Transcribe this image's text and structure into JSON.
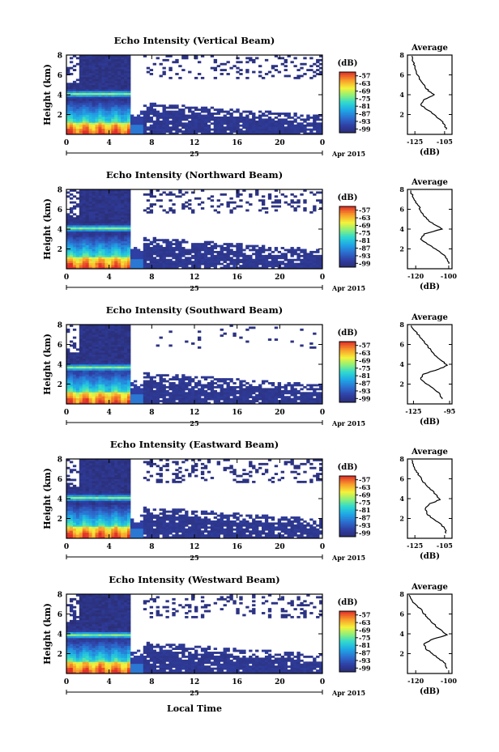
{
  "chart_data": {
    "type": "heatmap",
    "time_ticks": [
      "0",
      "4",
      "8",
      "12",
      "16",
      "20",
      "0"
    ],
    "time_range": [
      0,
      24
    ],
    "height_ticks": [
      "2",
      "4",
      "6",
      "8"
    ],
    "height_range": [
      0,
      8
    ],
    "day_label": "25",
    "month_label": "Apr 2015",
    "xlabel": "Local Time",
    "colorbar": {
      "unit": "(dB)",
      "ticks": [
        "-57",
        "-63",
        "-69",
        "-75",
        "-81",
        "-87",
        "-93",
        "-99"
      ],
      "range": [
        -102,
        -54
      ]
    },
    "panels": [
      {
        "title": "Echo Intensity (Vertical Beam)",
        "ylabel": "Height (km)",
        "avg_title": "Average",
        "avg_xlabel": "(dB)",
        "avg_ticks": [
          "-125",
          "-105"
        ],
        "avg_range": [
          -130,
          -100
        ],
        "avg_profile": [
          [
            -104,
            0.5
          ],
          [
            -105,
            1.0
          ],
          [
            -108,
            1.5
          ],
          [
            -112,
            2.0
          ],
          [
            -117,
            2.5
          ],
          [
            -121,
            3.0
          ],
          [
            -119,
            3.5
          ],
          [
            -112,
            4.0
          ],
          [
            -115,
            4.3
          ],
          [
            -118,
            4.7
          ],
          [
            -120,
            5.2
          ],
          [
            -122,
            5.7
          ],
          [
            -124,
            6.2
          ],
          [
            -125,
            6.8
          ],
          [
            -126,
            7.3
          ],
          [
            -127,
            7.9
          ]
        ]
      },
      {
        "title": "Echo Intensity (Northward Beam)",
        "ylabel": "Height (km)",
        "avg_title": "Average",
        "avg_xlabel": "(dB)",
        "avg_ticks": [
          "-120",
          "-100"
        ],
        "avg_range": [
          -125,
          -98
        ],
        "avg_profile": [
          [
            -100,
            0.5
          ],
          [
            -101,
            1.0
          ],
          [
            -104,
            1.5
          ],
          [
            -108,
            2.0
          ],
          [
            -113,
            2.5
          ],
          [
            -117,
            3.0
          ],
          [
            -115,
            3.5
          ],
          [
            -104,
            4.0
          ],
          [
            -108,
            4.4
          ],
          [
            -112,
            4.8
          ],
          [
            -115,
            5.3
          ],
          [
            -117,
            5.8
          ],
          [
            -118,
            6.3
          ],
          [
            -120,
            6.8
          ],
          [
            -122,
            7.3
          ],
          [
            -123,
            7.9
          ]
        ]
      },
      {
        "title": "Echo Intensity (Southward Beam)",
        "ylabel": "Height (km)",
        "avg_title": "Average",
        "avg_xlabel": "(dB)",
        "avg_ticks": [
          "-125",
          "-95"
        ],
        "avg_range": [
          -130,
          -93
        ],
        "avg_profile": [
          [
            -101,
            0.5
          ],
          [
            -103,
            1.0
          ],
          [
            -108,
            1.5
          ],
          [
            -114,
            2.0
          ],
          [
            -119,
            2.5
          ],
          [
            -117,
            3.0
          ],
          [
            -104,
            3.5
          ],
          [
            -97,
            3.9
          ],
          [
            -101,
            4.3
          ],
          [
            -106,
            4.8
          ],
          [
            -110,
            5.3
          ],
          [
            -113,
            5.8
          ],
          [
            -116,
            6.3
          ],
          [
            -120,
            6.8
          ],
          [
            -123,
            7.3
          ],
          [
            -127,
            7.9
          ]
        ]
      },
      {
        "title": "Echo Intensity (Eastward Beam)",
        "ylabel": "Height (km)",
        "avg_title": "Average",
        "avg_xlabel": "(dB)",
        "avg_ticks": [
          "-125",
          "-105"
        ],
        "avg_range": [
          -130,
          -100
        ],
        "avg_profile": [
          [
            -104,
            0.5
          ],
          [
            -105,
            1.0
          ],
          [
            -108,
            1.5
          ],
          [
            -113,
            2.0
          ],
          [
            -117,
            2.5
          ],
          [
            -118,
            3.0
          ],
          [
            -115,
            3.5
          ],
          [
            -108,
            3.9
          ],
          [
            -110,
            4.3
          ],
          [
            -113,
            4.8
          ],
          [
            -117,
            5.3
          ],
          [
            -120,
            5.8
          ],
          [
            -122,
            6.3
          ],
          [
            -124,
            6.8
          ],
          [
            -126,
            7.3
          ],
          [
            -127,
            7.9
          ]
        ]
      },
      {
        "title": "Echo Intensity (Westward Beam)",
        "ylabel": "Height (km)",
        "avg_title": "Average",
        "avg_xlabel": "(dB)",
        "avg_ticks": [
          "-120",
          "-100"
        ],
        "avg_range": [
          -125,
          -98
        ],
        "avg_profile": [
          [
            -101,
            0.5
          ],
          [
            -102,
            1.0
          ],
          [
            -106,
            1.5
          ],
          [
            -110,
            2.0
          ],
          [
            -114,
            2.5
          ],
          [
            -115,
            3.0
          ],
          [
            -109,
            3.5
          ],
          [
            -101,
            3.9
          ],
          [
            -104,
            4.3
          ],
          [
            -108,
            4.8
          ],
          [
            -111,
            5.3
          ],
          [
            -114,
            5.8
          ],
          [
            -116,
            6.3
          ],
          [
            -119,
            6.8
          ],
          [
            -122,
            7.3
          ],
          [
            -124,
            7.9
          ]
        ]
      }
    ]
  }
}
